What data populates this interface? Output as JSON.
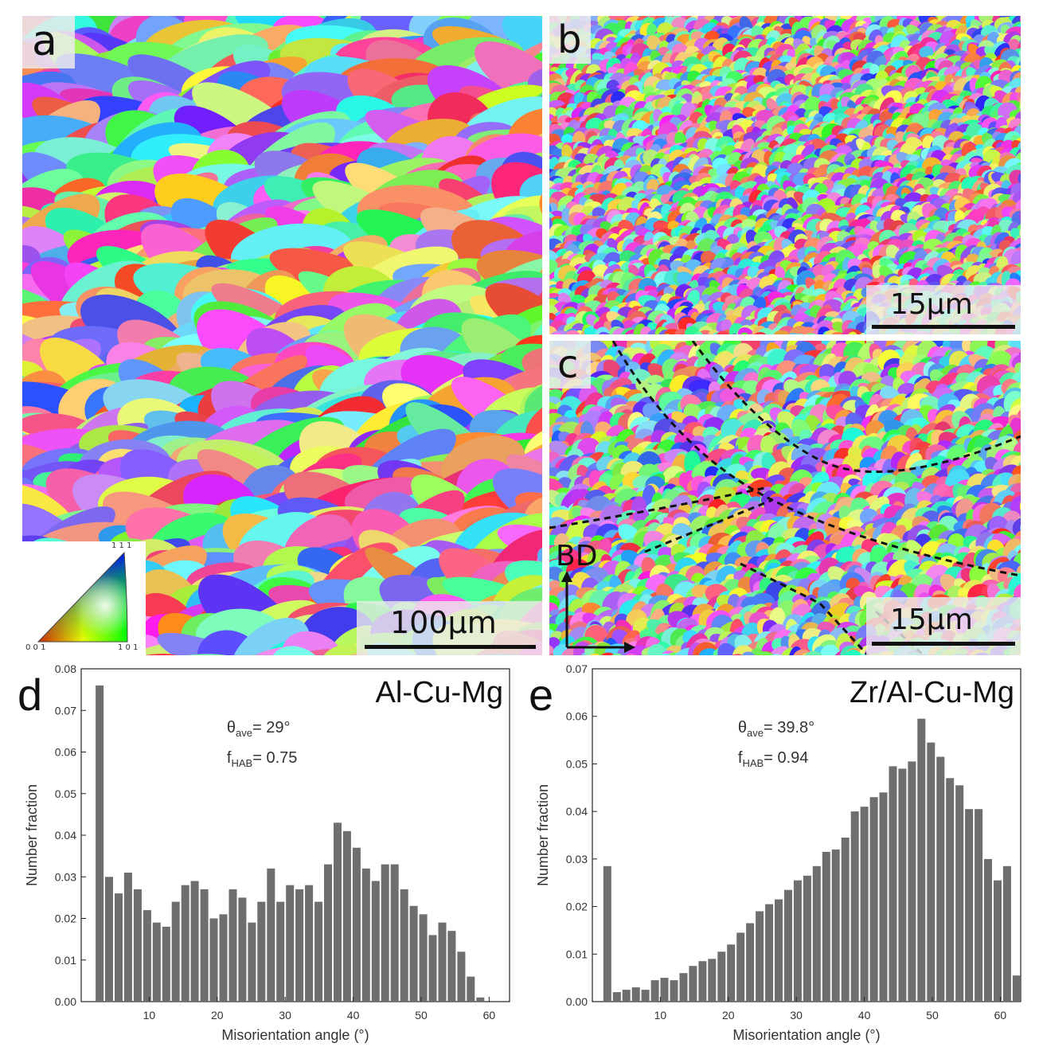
{
  "panels": {
    "a": {
      "letter": "a",
      "scale_label": "100μm",
      "seed": 11
    },
    "b": {
      "letter": "b",
      "scale_label": "15μm",
      "seed": 23
    },
    "c": {
      "letter": "c",
      "scale_label": "15μm",
      "seed": 37,
      "direction_label": "BD"
    }
  },
  "ipf_key": {
    "top": "1 1 1",
    "left": "0 0 1",
    "right": "1 0 1"
  },
  "chart_data": [
    {
      "id": "d",
      "letter": "d",
      "type": "bar",
      "title": "Al-Cu-Mg",
      "annotation_theta": "θ",
      "annotation_theta_sub": "ave",
      "annotation_theta_value": "= 29°",
      "annotation_f": "f",
      "annotation_f_sub": "HAB",
      "annotation_f_value": "= 0.75",
      "xlabel": "Misorientation angle (°)",
      "ylabel": "Number fraction",
      "xlim": [
        0,
        63
      ],
      "ylim": [
        0,
        0.08
      ],
      "yticks": [
        0.0,
        0.01,
        0.02,
        0.03,
        0.04,
        0.05,
        0.06,
        0.07,
        0.08
      ],
      "ytick_labels": [
        "0.00",
        "0.01",
        "0.02",
        "0.03",
        "0.04",
        "0.05",
        "0.06",
        "0.07",
        "0.08"
      ],
      "xticks": [
        10,
        20,
        30,
        40,
        50,
        60
      ],
      "xtick_labels": [
        "10",
        "20",
        "30",
        "40",
        "50",
        "60"
      ],
      "bin_width": 1.4,
      "bar_color": "#6e6e6e",
      "x": [
        2.7,
        4.1,
        5.5,
        6.9,
        8.3,
        9.7,
        11.1,
        12.5,
        13.9,
        15.3,
        16.7,
        18.1,
        19.5,
        20.9,
        22.3,
        23.7,
        25.1,
        26.5,
        27.9,
        29.3,
        30.7,
        32.1,
        33.5,
        34.9,
        36.3,
        37.7,
        39.1,
        40.5,
        41.9,
        43.3,
        44.7,
        46.1,
        47.5,
        48.9,
        50.3,
        51.7,
        53.1,
        54.5,
        55.9,
        57.3,
        58.7,
        60.1,
        61.5
      ],
      "values": [
        0.076,
        0.03,
        0.026,
        0.031,
        0.027,
        0.022,
        0.019,
        0.018,
        0.024,
        0.028,
        0.029,
        0.027,
        0.02,
        0.021,
        0.027,
        0.025,
        0.019,
        0.024,
        0.032,
        0.024,
        0.028,
        0.027,
        0.028,
        0.024,
        0.033,
        0.043,
        0.041,
        0.037,
        0.032,
        0.029,
        0.033,
        0.033,
        0.027,
        0.023,
        0.021,
        0.016,
        0.019,
        0.017,
        0.012,
        0.006,
        0.001,
        0.0,
        0.0
      ]
    },
    {
      "id": "e",
      "letter": "e",
      "type": "bar",
      "title": "Zr/Al-Cu-Mg",
      "annotation_theta": "θ",
      "annotation_theta_sub": "ave",
      "annotation_theta_value": "= 39.8°",
      "annotation_f": "f",
      "annotation_f_sub": "HAB",
      "annotation_f_value": "= 0.94",
      "xlabel": "Misorientation angle (°)",
      "ylabel": "Number fraction",
      "xlim": [
        0,
        63
      ],
      "ylim": [
        0,
        0.07
      ],
      "yticks": [
        0.0,
        0.01,
        0.02,
        0.03,
        0.04,
        0.05,
        0.06,
        0.07
      ],
      "ytick_labels": [
        "0.00",
        "0.01",
        "0.02",
        "0.03",
        "0.04",
        "0.05",
        "0.06",
        "0.07"
      ],
      "xticks": [
        10,
        20,
        30,
        40,
        50,
        60
      ],
      "xtick_labels": [
        "10",
        "20",
        "30",
        "40",
        "50",
        "60"
      ],
      "bin_width": 1.4,
      "bar_color": "#6e6e6e",
      "x": [
        2.2,
        3.6,
        5.0,
        6.4,
        7.8,
        9.2,
        10.6,
        12.0,
        13.4,
        14.8,
        16.2,
        17.6,
        19.0,
        20.4,
        21.8,
        23.2,
        24.6,
        26.0,
        27.4,
        28.8,
        30.2,
        31.6,
        33.0,
        34.4,
        35.8,
        37.2,
        38.6,
        40.0,
        41.4,
        42.8,
        44.2,
        45.6,
        47.0,
        48.4,
        49.8,
        51.2,
        52.6,
        54.0,
        55.4,
        56.8,
        58.2,
        59.6,
        61.0,
        62.4
      ],
      "values": [
        0.0285,
        0.002,
        0.0025,
        0.003,
        0.0025,
        0.0045,
        0.005,
        0.0045,
        0.006,
        0.0075,
        0.0085,
        0.009,
        0.0105,
        0.012,
        0.0145,
        0.0165,
        0.019,
        0.0205,
        0.0215,
        0.0235,
        0.0255,
        0.0265,
        0.0285,
        0.0315,
        0.032,
        0.0345,
        0.04,
        0.041,
        0.043,
        0.044,
        0.0495,
        0.049,
        0.0505,
        0.0595,
        0.0545,
        0.0515,
        0.047,
        0.0455,
        0.0405,
        0.0405,
        0.03,
        0.0255,
        0.0285,
        0.0055
      ]
    }
  ]
}
